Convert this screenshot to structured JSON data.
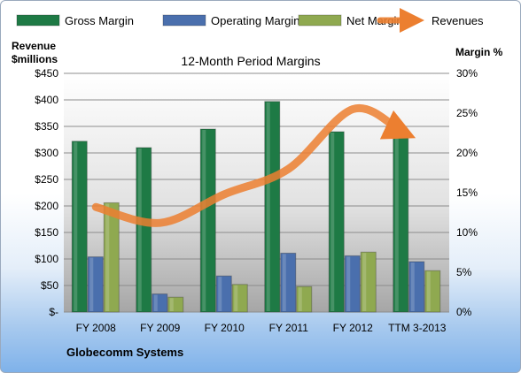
{
  "chart_data": {
    "type": "bar",
    "title": "12-Month Period Margins",
    "company": "Globecomm Systems",
    "categories": [
      "FY 2008",
      "FY 2009",
      "FY 2010",
      "FY 2011",
      "FY 2012",
      "TTM 3-2013"
    ],
    "series": [
      {
        "name": "Gross Margin",
        "axis": "left",
        "color": "#1e7a45",
        "values": [
          322,
          310,
          345,
          397,
          340,
          338
        ]
      },
      {
        "name": "Operating Margin",
        "axis": "left",
        "color": "#4a6fad",
        "values": [
          104,
          34,
          68,
          111,
          106,
          95
        ]
      },
      {
        "name": "Net Margin",
        "axis": "left",
        "color": "#8fa950",
        "values": [
          206,
          28,
          52,
          48,
          113,
          78
        ]
      },
      {
        "name": "Revenues",
        "axis": "right",
        "type": "line",
        "color": "#ec7f30",
        "values": [
          13.2,
          11.2,
          14.8,
          18,
          25.5,
          22.7
        ]
      }
    ],
    "y_left": {
      "label_line1": "Revenue",
      "label_line2": "$millions",
      "range": [
        0,
        450
      ],
      "ticks": [
        "$-",
        "$50",
        "$100",
        "$150",
        "$200",
        "$250",
        "$300",
        "$350",
        "$400",
        "$450"
      ]
    },
    "y_right": {
      "label": "Margin %",
      "range": [
        0,
        30
      ],
      "ticks": [
        "0%",
        "5%",
        "10%",
        "15%",
        "20%",
        "25%",
        "30%"
      ]
    },
    "grid": true,
    "legend_position": "top"
  }
}
